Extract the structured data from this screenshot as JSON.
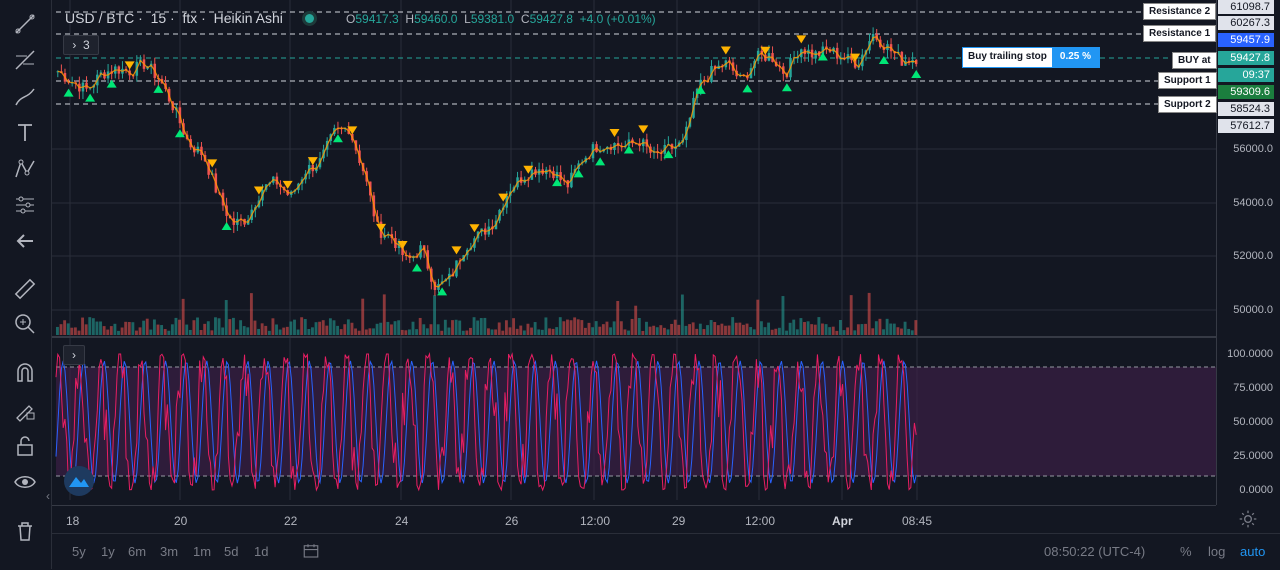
{
  "header": {
    "symbol": "USD / BTC",
    "interval": "15",
    "exchange": "ftx",
    "chart_type": "Heikin Ashi",
    "ohlc": {
      "o_label": "O",
      "o": "59417.3",
      "h_label": "H",
      "h": "59460.0",
      "l_label": "L",
      "l": "59381.0",
      "c_label": "C",
      "c": "59427.8",
      "change": "+4.0 (+0.01%)"
    }
  },
  "indicator_count": "3",
  "collapse_glyph": "›",
  "toolbar_icons": [
    "trend-line-icon",
    "fib-tool-icon",
    "brush-icon",
    "text-icon",
    "pattern-icon",
    "forecast-icon",
    "arrow-icon",
    "ruler-icon",
    "zoom-in-icon",
    "magnet-icon",
    "lock-drawing-icon",
    "unlock-icon",
    "eye-icon",
    "trash-icon"
  ],
  "price_axis": {
    "labels": [
      "56000.0",
      "54000.0",
      "52000.0",
      "50000.0"
    ],
    "levels": [
      {
        "name": "Resistance 2",
        "value": "61098.7"
      },
      {
        "name": "Resistance 1",
        "value": "60267.3"
      },
      {
        "name": "BUY at",
        "value": "59427.8"
      },
      {
        "name": "Support 1",
        "value": "59309.6"
      },
      {
        "name": "Support 2",
        "value": "58524.3"
      }
    ],
    "current_price": "59457.9",
    "countdown": "09:37",
    "extra": "57612.7"
  },
  "trailing_stop": {
    "label": "Buy trailing stop",
    "value": "0.25 %"
  },
  "oscillator_axis": [
    "100.0000",
    "75.0000",
    "50.0000",
    "25.0000",
    "0.0000"
  ],
  "time_axis": [
    "18",
    "20",
    "22",
    "24",
    "26",
    "12:00",
    "29",
    "12:00",
    "Apr",
    "08:45"
  ],
  "bottom": {
    "ranges": [
      "5y",
      "1y",
      "6m",
      "3m",
      "1m",
      "5d",
      "1d"
    ],
    "clock": "08:50:22 (UTC-4)",
    "percent": "%",
    "log": "log",
    "auto": "auto"
  },
  "colors": {
    "up": "#26a69a",
    "down": "#ef5350",
    "ma": "#ff9800",
    "buy": "#00e676",
    "sell": "#ffb300",
    "osc_k": "#e91e63",
    "osc_d": "#2962ff"
  },
  "chart_data": {
    "type": "line",
    "series": [
      {
        "name": "USD / BTC",
        "values": [
          58900,
          58500,
          58200,
          58800,
          59000,
          58900,
          59200,
          58600,
          57500,
          56200,
          55800,
          54300,
          53200,
          53400,
          54500,
          54800,
          54200,
          55200,
          55500,
          56600,
          56800,
          55200,
          53000,
          52700,
          51800,
          52300,
          50800,
          51200,
          52400,
          52800,
          53300,
          54500,
          55000,
          55300,
          55200,
          54600,
          55600,
          56100,
          56200,
          56100,
          56300,
          55700,
          56000,
          56200,
          58300,
          58900,
          59200,
          58500,
          59400,
          59500,
          58800,
          59800,
          59500,
          59700,
          59400,
          59200,
          60300,
          59800,
          59300,
          59400
        ]
      }
    ],
    "ylim": [
      49000,
      61500
    ]
  }
}
